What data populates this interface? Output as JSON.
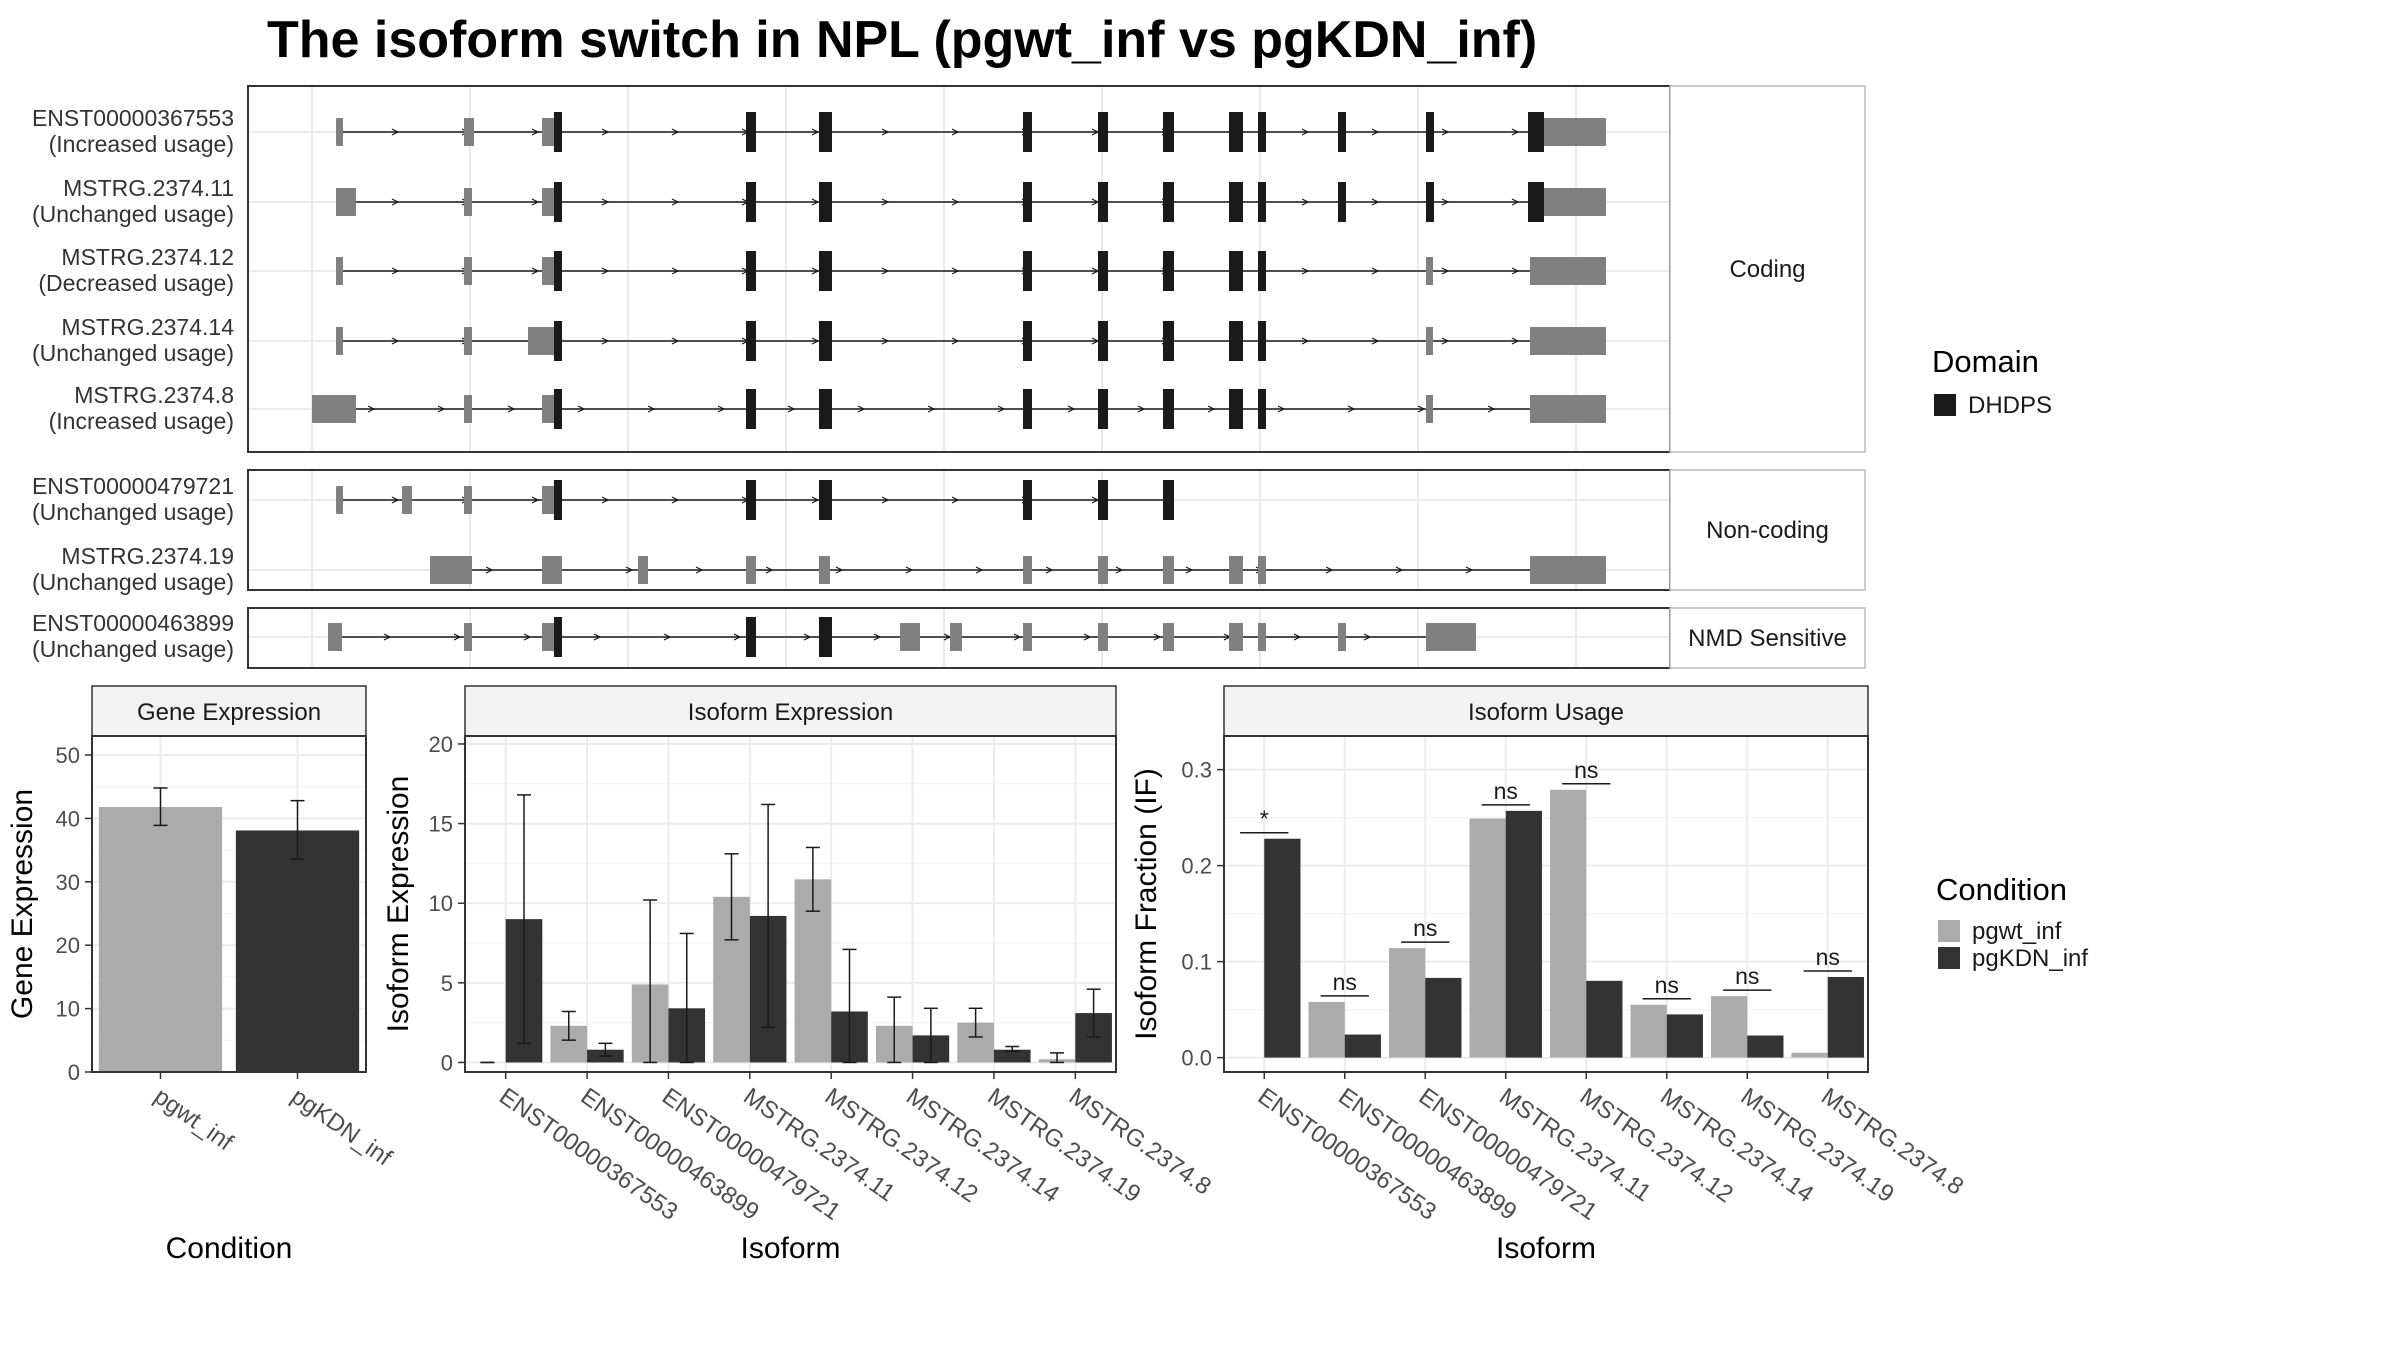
{
  "title": "The isoform switch in NPL (pgwt_inf vs pgKDN_inf)",
  "colors": {
    "pgwt_inf": "#ababab",
    "pgKDN_inf": "#333333",
    "domain": "#1a1a1a",
    "exon": "#808080",
    "strip_bg": "#f2f2f2",
    "grid": "#ebebeb",
    "panel_border": "#333333"
  },
  "structure": {
    "groups": [
      {
        "label": "Coding",
        "isoforms": [
          {
            "name": "ENST00000367553",
            "usage": "(Increased usage)"
          },
          {
            "name": "MSTRG.2374.11",
            "usage": "(Unchanged usage)"
          },
          {
            "name": "MSTRG.2374.12",
            "usage": "(Decreased usage)"
          },
          {
            "name": "MSTRG.2374.14",
            "usage": "(Unchanged usage)"
          },
          {
            "name": "MSTRG.2374.8",
            "usage": "(Increased usage)"
          }
        ]
      },
      {
        "label": "Non-coding",
        "isoforms": [
          {
            "name": "ENST00000479721",
            "usage": "(Unchanged usage)"
          },
          {
            "name": "MSTRG.2374.19",
            "usage": "(Unchanged usage)"
          }
        ]
      },
      {
        "label": "NMD Sensitive",
        "isoforms": [
          {
            "name": "ENST00000463899",
            "usage": "(Unchanged usage)"
          }
        ]
      }
    ],
    "legend": {
      "title": "Domain",
      "items": [
        {
          "name": "DHDPS",
          "color": "#1a1a1a"
        }
      ]
    }
  },
  "condition_legend": {
    "title": "Condition",
    "items": [
      {
        "name": "pgwt_inf",
        "color": "#ababab"
      },
      {
        "name": "pgKDN_inf",
        "color": "#333333"
      }
    ]
  },
  "chart_data": [
    {
      "type": "bar",
      "title": "Gene Expression",
      "xlabel": "Condition",
      "ylabel": "Gene Expression",
      "ylim": [
        0,
        53
      ],
      "yticks": [
        0,
        10,
        20,
        30,
        40,
        50
      ],
      "categories": [
        "pgwt_inf",
        "pgKDN_inf"
      ],
      "values": [
        41.8,
        38.1
      ],
      "errors": [
        [
          38.9,
          44.8
        ],
        [
          33.6,
          42.8
        ]
      ]
    },
    {
      "type": "bar",
      "title": "Isoform Expression",
      "xlabel": "Isoform",
      "ylabel": "Isoform Expression",
      "ylim": [
        -0.6,
        20.5
      ],
      "yticks": [
        0,
        5,
        10,
        15,
        20
      ],
      "categories": [
        "ENST00000367553",
        "ENST00000463899",
        "ENST00000479721",
        "MSTRG.2374.11",
        "MSTRG.2374.12",
        "MSTRG.2374.14",
        "MSTRG.2374.19",
        "MSTRG.2374.8"
      ],
      "series": [
        {
          "name": "pgwt_inf",
          "values": [
            0.0,
            2.3,
            4.9,
            10.4,
            11.5,
            2.3,
            2.5,
            0.2
          ],
          "errors": [
            [
              0.0,
              0.0
            ],
            [
              1.4,
              3.2
            ],
            [
              0.0,
              10.2
            ],
            [
              7.7,
              13.1
            ],
            [
              9.5,
              13.5
            ],
            [
              0.0,
              4.1
            ],
            [
              1.6,
              3.4
            ],
            [
              0.0,
              0.6
            ]
          ]
        },
        {
          "name": "pgKDN_inf",
          "values": [
            9.0,
            0.8,
            3.4,
            9.2,
            3.2,
            1.7,
            0.8,
            3.1
          ],
          "errors": [
            [
              1.2,
              16.8
            ],
            [
              0.4,
              1.2
            ],
            [
              0.0,
              8.1
            ],
            [
              2.2,
              16.2
            ],
            [
              0.0,
              7.1
            ],
            [
              0.0,
              3.4
            ],
            [
              0.7,
              1.0
            ],
            [
              1.6,
              4.6
            ]
          ]
        }
      ]
    },
    {
      "type": "bar",
      "title": "Isoform Usage",
      "xlabel": "Isoform",
      "ylabel": "Isoform Fraction (IF)",
      "ylim": [
        -0.015,
        0.335
      ],
      "yticks": [
        0.0,
        0.1,
        0.2,
        0.3
      ],
      "categories": [
        "ENST00000367553",
        "ENST00000463899",
        "ENST00000479721",
        "MSTRG.2374.11",
        "MSTRG.2374.12",
        "MSTRG.2374.14",
        "MSTRG.2374.19",
        "MSTRG.2374.8"
      ],
      "series": [
        {
          "name": "pgwt_inf",
          "values": [
            0.0,
            0.058,
            0.114,
            0.249,
            0.279,
            0.055,
            0.064,
            0.005
          ]
        },
        {
          "name": "pgKDN_inf",
          "values": [
            0.228,
            0.024,
            0.083,
            0.257,
            0.08,
            0.045,
            0.023,
            0.084
          ]
        }
      ],
      "significance": [
        "*",
        "ns",
        "ns",
        "ns",
        "ns",
        "ns",
        "ns",
        "ns"
      ]
    }
  ]
}
